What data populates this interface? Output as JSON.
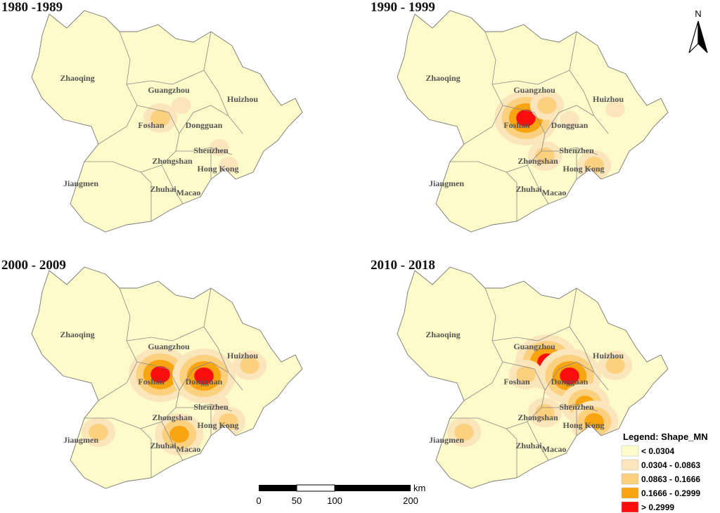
{
  "panels": [
    {
      "period": "1980 -1989",
      "hotspots": [
        {
          "city": "Foshan",
          "level": 2
        },
        {
          "city": "Guangzhou",
          "level": 1
        },
        {
          "city": "Shenzhen",
          "level": 1
        },
        {
          "city": "Hong Kong",
          "level": 1
        }
      ]
    },
    {
      "period": "1990 - 1999",
      "hotspots": [
        {
          "city": "Foshan",
          "level": 4
        },
        {
          "city": "Guangzhou",
          "level": 2
        },
        {
          "city": "Dongguan",
          "level": 1
        },
        {
          "city": "Zhongshan",
          "level": 2
        },
        {
          "city": "Huizhou",
          "level": 1
        },
        {
          "city": "Hong Kong",
          "level": 2
        }
      ]
    },
    {
      "period": "2000 - 2009",
      "hotspots": [
        {
          "city": "Foshan",
          "level": 4
        },
        {
          "city": "Dongguan",
          "level": 4
        },
        {
          "city": "Huizhou",
          "level": 2
        },
        {
          "city": "Zhuhai",
          "level": 3
        },
        {
          "city": "Jiangmen",
          "level": 2
        },
        {
          "city": "Hong Kong",
          "level": 2
        },
        {
          "city": "Shenzhen",
          "level": 1
        }
      ]
    },
    {
      "period": "2010 - 2018",
      "hotspots": [
        {
          "city": "Guangzhou",
          "level": 4
        },
        {
          "city": "Dongguan",
          "level": 4
        },
        {
          "city": "Shenzhen",
          "level": 3
        },
        {
          "city": "Huizhou",
          "level": 2
        },
        {
          "city": "Zhongshan",
          "level": 2
        },
        {
          "city": "Jiangmen",
          "level": 2
        },
        {
          "city": "Hong Kong",
          "level": 3
        },
        {
          "city": "Foshan",
          "level": 2
        }
      ]
    }
  ],
  "cities": [
    "Zhaoqing",
    "Guangzhou",
    "Huizhou",
    "Foshan",
    "Dongguan",
    "Shenzhen",
    "Zhongshan",
    "Hong Kong",
    "Jiangmen",
    "Zhuhai",
    "Macao"
  ],
  "legend": {
    "title": "Legend: Shape_MN",
    "classes": [
      {
        "label": "< 0.0304",
        "color": "#fdfbc9"
      },
      {
        "label": "0.0304 - 0.0863",
        "color": "#fbe5bb"
      },
      {
        "label": "0.0863 - 0.1666",
        "color": "#fbd07f"
      },
      {
        "label": "0.1666 - 0.2999",
        "color": "#f9a511"
      },
      {
        "label": "> 0.2999",
        "color": "#fa0d0d"
      }
    ]
  },
  "scale_bar": {
    "ticks": [
      "0",
      "50",
      "100",
      "200"
    ],
    "unit": "km"
  },
  "north_arrow": {
    "label": "N",
    "icon": "north-arrow-icon"
  }
}
